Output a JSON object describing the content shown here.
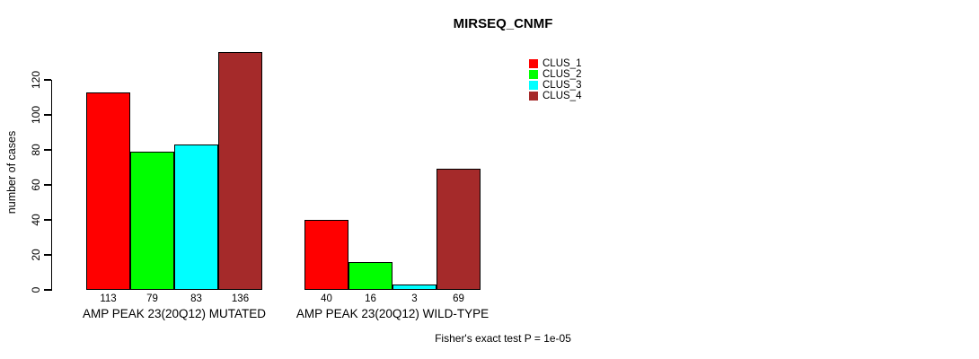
{
  "chart_data": {
    "type": "bar",
    "title": "MIRSEQ_CNMF",
    "ylabel": "number of cases",
    "xlabel": "",
    "ylim": [
      0,
      140
    ],
    "yticks": [
      0,
      20,
      40,
      60,
      80,
      100,
      120
    ],
    "grid": false,
    "legend_position": "top-right",
    "categories": [
      "AMP PEAK 23(20Q12) MUTATED",
      "AMP PEAK 23(20Q12) WILD-TYPE"
    ],
    "series": [
      {
        "name": "CLUS_1",
        "color": "#FF0000",
        "values": [
          113,
          40
        ]
      },
      {
        "name": "CLUS_2",
        "color": "#00FF00",
        "values": [
          79,
          16
        ]
      },
      {
        "name": "CLUS_3",
        "color": "#00FFFF",
        "values": [
          83,
          3
        ]
      },
      {
        "name": "CLUS_4",
        "color": "#A52A2A",
        "values": [
          136,
          69
        ]
      }
    ],
    "bar_value_labels": [
      [
        113,
        79,
        83,
        136
      ],
      [
        40,
        16,
        3,
        69
      ]
    ],
    "annotation": "Fisher's exact test P = 1e-05"
  }
}
